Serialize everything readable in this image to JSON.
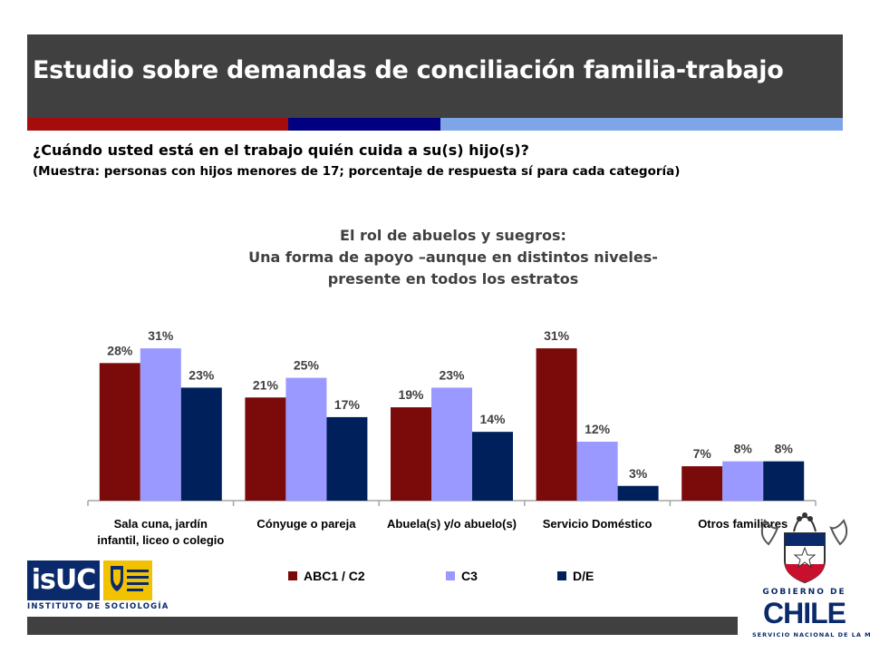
{
  "header": {
    "title": "Estudio sobre demandas de conciliación familia-trabajo",
    "stripe_colors": [
      "#a50d0d",
      "#000080",
      "#7da5e8"
    ]
  },
  "question": "¿Cuándo usted está en el trabajo quién cuida a su(s) hijo(s)?",
  "sample_note": "(Muestra: personas con hijos menores de 17; porcentaje de respuesta sí para cada categoría)",
  "chart_data": {
    "type": "bar",
    "title_lines": [
      "El rol de abuelos y suegros:",
      "Una forma de apoyo –aunque  en distintos niveles-",
      "presente en todos los estratos"
    ],
    "categories": [
      [
        "Sala cuna, jardín",
        "infantil, liceo o colegio"
      ],
      [
        "Cónyuge o pareja"
      ],
      [
        "Abuela(s) y/o abuelo(s)"
      ],
      [
        "Servicio Doméstico"
      ],
      [
        "Otros familiares"
      ]
    ],
    "series": [
      {
        "name": "ABC1 / C2",
        "color": "#7b0a0a",
        "values": [
          28,
          21,
          19,
          31,
          7
        ],
        "labels": [
          "28%",
          "21%",
          "19%",
          "31%",
          "7%"
        ]
      },
      {
        "name": "C3",
        "color": "#9999ff",
        "values": [
          31,
          25,
          23,
          12,
          8
        ],
        "labels": [
          "31%",
          "25%",
          "23%",
          "12%",
          "8%"
        ]
      },
      {
        "name": "D/E",
        "color": "#00205b",
        "values": [
          23,
          17,
          14,
          3,
          8
        ],
        "labels": [
          "23%",
          "17%",
          "14%",
          "3%",
          "8%"
        ]
      }
    ],
    "ylim": [
      0,
      36
    ],
    "grid": false,
    "legend_position": "bottom"
  },
  "logos": {
    "isuc_text": "isUC",
    "isuc_sub": "INSTITUTO DE SOCIOLOGÍA",
    "gob_line1": "GOBIERNO DE",
    "gob_line2": "CHILE",
    "gob_line3": "SERVICIO NACIONAL DE LA MUJER"
  }
}
